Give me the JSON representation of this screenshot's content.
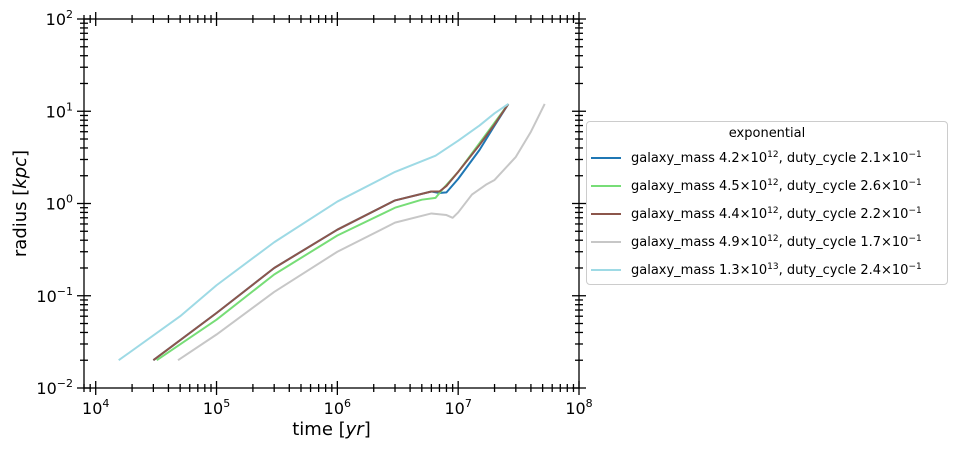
{
  "chart_data": {
    "type": "line",
    "xlabel": "time",
    "xlabel_unit": "yr",
    "ylabel": "radius",
    "ylabel_unit": "kpc",
    "xscale": "log",
    "yscale": "log",
    "xlim": [
      8000,
      100000000
    ],
    "ylim": [
      0.01,
      100
    ],
    "x_tick_labels": [
      {
        "value": 10000,
        "base": "10",
        "exp": "4"
      },
      {
        "value": 100000,
        "base": "10",
        "exp": "5"
      },
      {
        "value": 1000000,
        "base": "10",
        "exp": "6"
      },
      {
        "value": 10000000,
        "base": "10",
        "exp": "7"
      },
      {
        "value": 100000000,
        "base": "10",
        "exp": "8"
      }
    ],
    "y_tick_labels": [
      {
        "value": 0.01,
        "base": "10",
        "exp": "−2"
      },
      {
        "value": 0.1,
        "base": "10",
        "exp": "−1"
      },
      {
        "value": 1,
        "base": "10",
        "exp": "0"
      },
      {
        "value": 10,
        "base": "10",
        "exp": "1"
      },
      {
        "value": 100,
        "base": "10",
        "exp": "2"
      }
    ],
    "grid": false,
    "legend_title": "exponential",
    "legend_location": "outside right",
    "series": [
      {
        "name": "galaxy_mass 4.2×10^12, duty_cycle 2.1×10^-1",
        "label_parts": {
          "mass_mant": "4.2",
          "mass_exp": "12",
          "duty_mant": "2.1",
          "duty_exp": "−1"
        },
        "color": "#1f77b4",
        "points": [
          [
            30000,
            0.02
          ],
          [
            100000,
            0.065
          ],
          [
            300000,
            0.2
          ],
          [
            1000000,
            0.52
          ],
          [
            3000000,
            1.08
          ],
          [
            6000000,
            1.35
          ],
          [
            7000000,
            1.3
          ],
          [
            8000000,
            1.32
          ],
          [
            10000000,
            1.85
          ],
          [
            15000000,
            3.8
          ],
          [
            20000000,
            7.0
          ],
          [
            26000000,
            12.0
          ]
        ]
      },
      {
        "name": "galaxy_mass 4.5×10^12, duty_cycle 2.6×10^-1",
        "label_parts": {
          "mass_mant": "4.5",
          "mass_exp": "12",
          "duty_mant": "2.6",
          "duty_exp": "−1"
        },
        "color": "#77dd77",
        "points": [
          [
            32000,
            0.02
          ],
          [
            100000,
            0.055
          ],
          [
            300000,
            0.17
          ],
          [
            1000000,
            0.45
          ],
          [
            3000000,
            0.9
          ],
          [
            5000000,
            1.1
          ],
          [
            6500000,
            1.15
          ],
          [
            7500000,
            1.45
          ],
          [
            10000000,
            2.2
          ],
          [
            15000000,
            4.5
          ],
          [
            20000000,
            7.5
          ],
          [
            26000000,
            12.0
          ]
        ]
      },
      {
        "name": "galaxy_mass 4.4×10^12, duty_cycle 2.2×10^-1",
        "label_parts": {
          "mass_mant": "4.4",
          "mass_exp": "12",
          "duty_mant": "2.2",
          "duty_exp": "−1"
        },
        "color": "#8c564b",
        "points": [
          [
            30000,
            0.02
          ],
          [
            100000,
            0.065
          ],
          [
            300000,
            0.2
          ],
          [
            1000000,
            0.52
          ],
          [
            3000000,
            1.08
          ],
          [
            6000000,
            1.35
          ],
          [
            7000000,
            1.35
          ],
          [
            8000000,
            1.55
          ],
          [
            10000000,
            2.2
          ],
          [
            15000000,
            4.3
          ],
          [
            20000000,
            7.2
          ],
          [
            26000000,
            12.0
          ]
        ]
      },
      {
        "name": "galaxy_mass 4.9×10^12, duty_cycle 1.7×10^-1",
        "label_parts": {
          "mass_mant": "4.9",
          "mass_exp": "12",
          "duty_mant": "1.7",
          "duty_exp": "−1"
        },
        "color": "#c7c7c7",
        "points": [
          [
            48000,
            0.02
          ],
          [
            100000,
            0.038
          ],
          [
            300000,
            0.11
          ],
          [
            1000000,
            0.3
          ],
          [
            3000000,
            0.62
          ],
          [
            6000000,
            0.78
          ],
          [
            8000000,
            0.75
          ],
          [
            9000000,
            0.7
          ],
          [
            10000000,
            0.8
          ],
          [
            13000000,
            1.25
          ],
          [
            17000000,
            1.6
          ],
          [
            20000000,
            1.8
          ],
          [
            30000000,
            3.2
          ],
          [
            40000000,
            6.0
          ],
          [
            52000000,
            12.0
          ]
        ]
      },
      {
        "name": "galaxy_mass 1.3×10^13, duty_cycle 2.4×10^-1",
        "label_parts": {
          "mass_mant": "1.3",
          "mass_exp": "13",
          "duty_mant": "2.4",
          "duty_exp": "−1"
        },
        "color": "#9edae5",
        "points": [
          [
            15500,
            0.02
          ],
          [
            50000,
            0.06
          ],
          [
            100000,
            0.13
          ],
          [
            300000,
            0.38
          ],
          [
            1000000,
            1.05
          ],
          [
            3000000,
            2.2
          ],
          [
            6500000,
            3.3
          ],
          [
            10000000,
            4.8
          ],
          [
            15000000,
            7.0
          ],
          [
            20000000,
            9.5
          ],
          [
            26000000,
            12.0
          ]
        ]
      }
    ]
  }
}
